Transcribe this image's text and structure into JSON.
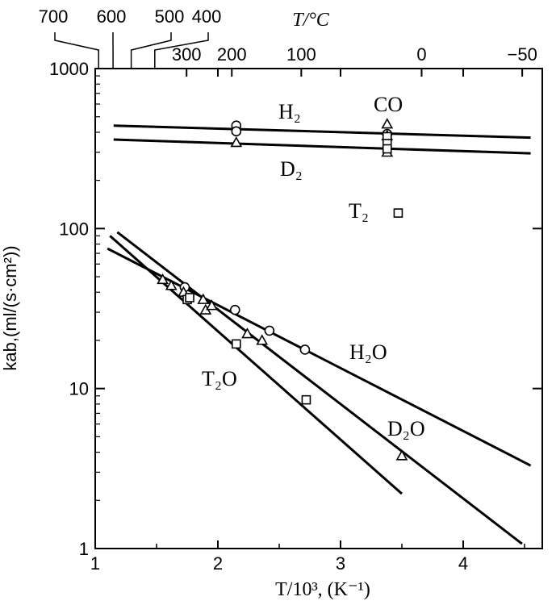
{
  "chart_data": {
    "type": "scatter",
    "title": "",
    "xlabel": "T/10³, (K⁻¹)",
    "ylabel": "kab,(ml/(s·cm²))",
    "top_axis_label": "T/°C",
    "x_axis": {
      "range": [
        1,
        4.6
      ],
      "tick_values": [
        1,
        2,
        3,
        4
      ],
      "tick_labels": [
        "1",
        "2",
        "3",
        "4"
      ]
    },
    "y_axis": {
      "scale": "log",
      "range": [
        1,
        1000
      ],
      "tick_values": [
        1,
        10,
        100,
        1000
      ],
      "tick_labels": [
        "1",
        "10",
        "100",
        "1000"
      ]
    },
    "top_axis": {
      "ticks": [
        {
          "label": "700",
          "value": 700
        },
        {
          "label": "600",
          "value": 600
        },
        {
          "label": "500",
          "value": 500
        },
        {
          "label": "400",
          "value": 400
        },
        {
          "label": "300",
          "value": 300
        },
        {
          "label": "200",
          "value": 200
        },
        {
          "label": "100",
          "value": 100
        },
        {
          "label": "0",
          "value": 0
        },
        {
          "label": "−50",
          "value": -50
        }
      ]
    },
    "curve_labels": [
      "H₂",
      "D₂",
      "T₂",
      "CO",
      "H₂O",
      "D₂O",
      "T₂O"
    ],
    "series": [
      {
        "name": "H₂",
        "line": [
          [
            1.15,
            440
          ],
          [
            4.55,
            370
          ]
        ],
        "markers": "circle",
        "points": [
          [
            2.15,
            440
          ],
          [
            2.15,
            405
          ],
          [
            3.38,
            390
          ]
        ]
      },
      {
        "name": "D₂",
        "line": [
          [
            1.15,
            360
          ],
          [
            4.55,
            295
          ]
        ],
        "markers": "triangle",
        "points": [
          [
            2.15,
            345
          ],
          [
            3.38,
            300
          ]
        ]
      },
      {
        "name": "CO",
        "markers": "triangle",
        "points": [
          [
            3.38,
            450
          ],
          [
            3.38,
            380
          ]
        ]
      },
      {
        "name": "T₂",
        "markers": "square",
        "points": [
          [
            3.38,
            375
          ],
          [
            3.38,
            340
          ],
          [
            3.38,
            315
          ],
          [
            3.47,
            125
          ]
        ]
      },
      {
        "name": "H₂O",
        "line": [
          [
            1.1,
            75
          ],
          [
            4.55,
            3.3
          ]
        ],
        "markers": "circle",
        "points": [
          [
            1.73,
            43
          ],
          [
            2.14,
            31
          ],
          [
            2.42,
            23
          ],
          [
            2.71,
            17.5
          ]
        ]
      },
      {
        "name": "D₂O",
        "line": [
          [
            1.18,
            95
          ],
          [
            4.48,
            1.07
          ]
        ],
        "markers": "triangle",
        "points": [
          [
            1.55,
            48
          ],
          [
            1.62,
            44
          ],
          [
            1.72,
            40
          ],
          [
            1.88,
            36
          ],
          [
            1.9,
            31
          ],
          [
            1.95,
            33
          ],
          [
            2.24,
            22
          ],
          [
            2.36,
            20
          ],
          [
            3.5,
            3.8
          ]
        ]
      },
      {
        "name": "T₂O",
        "line": [
          [
            1.12,
            90
          ],
          [
            3.5,
            2.2
          ]
        ],
        "markers": "square",
        "points": [
          [
            1.75,
            36
          ],
          [
            1.77,
            37
          ],
          [
            2.15,
            19
          ],
          [
            2.72,
            8.5
          ]
        ]
      }
    ]
  }
}
